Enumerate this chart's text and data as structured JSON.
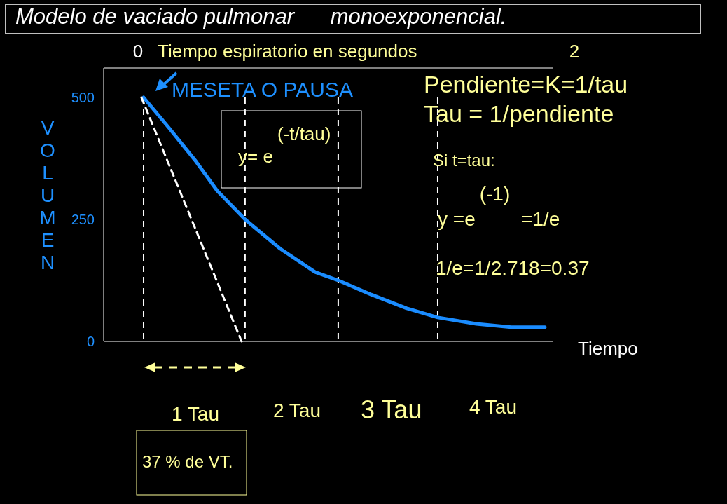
{
  "chart_data": {
    "type": "line",
    "title": "Modelo de vaciado pulmonar      monoexponencial.",
    "x2label": "Tiempo espiratorio en segundos",
    "xlabel": "Tiempo",
    "ylabel": "VOLUMEN",
    "xlim": [
      -0.157,
      2.0
    ],
    "xticks": [
      0,
      2
    ],
    "ylim": [
      0,
      500
    ],
    "yticks": [
      0,
      250,
      500
    ],
    "series": [
      {
        "color": "#1a8cff",
        "x": [
          0.026,
          0.138,
          0.266,
          0.363,
          0.491,
          0.652,
          0.812,
          0.918,
          1.069,
          1.23,
          1.374,
          1.551,
          1.711,
          1.865
        ],
        "values": [
          500,
          440,
          369,
          309,
          250,
          190,
          142,
          125,
          96,
          68,
          49,
          36,
          29,
          29
        ]
      },
      {
        "color": "#ffffff",
        "line_style": "dashed",
        "x": [
          0.016,
          0.475
        ],
        "values": [
          500,
          0
        ]
      }
    ],
    "ref_lines": [
      {
        "axis": "x",
        "value": 0.026,
        "color": "#ffffff",
        "line_style": "dashed"
      },
      {
        "axis": "x",
        "value": 0.491,
        "color": "#ffffff",
        "line_style": "dashed"
      },
      {
        "axis": "x",
        "value": 0.918,
        "color": "#ffffff",
        "line_style": "dashed"
      },
      {
        "axis": "x",
        "value": 1.374,
        "color": "#ffffff",
        "line_style": "dashed"
      }
    ],
    "annotations": [
      "MESETA O PAUSA",
      "Pendiente=K=1/tau",
      "Tau = 1/pendiente",
      "y= e$^{(-t/tau)}$",
      "Si t=tau:",
      "y =e$^{(-1)}$ =1/e",
      "1/e=1/2.718=0.37",
      "1 Tau",
      "2 Tau",
      "3 Tau",
      "4 Tau",
      "37 % de VT."
    ]
  }
}
